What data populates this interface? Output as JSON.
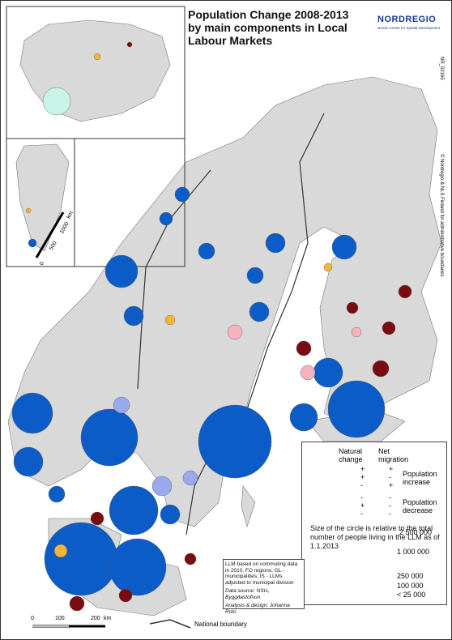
{
  "header": {
    "title": "Population Change 2008-2013 by main components in Local Labour Markets",
    "logo": "NORDREGIO",
    "logo_subtitle": "Nordic Centre for Spatial Development",
    "map_id": "NR_02165",
    "copyright": "© Nordregio & NLS Finland for administrative boundaries"
  },
  "legend": {
    "natural_change": "Natural change",
    "net_migration": "Net migration",
    "rows": [
      {
        "color": "#0b5cc7",
        "natural": "+",
        "migration": "+"
      },
      {
        "color": "#c8f3e6",
        "natural": "+",
        "migration": "-"
      },
      {
        "color": "#9aa8ee",
        "natural": "-",
        "migration": "+"
      },
      {
        "color": "#f4b3bd",
        "natural": "-",
        "migration": "-"
      },
      {
        "color": "#f5b33a",
        "natural": "+",
        "migration": "-"
      },
      {
        "color": "#7a0b10",
        "natural": "-",
        "migration": "-"
      }
    ],
    "increase": "Population increase",
    "decrease": "Population decrease",
    "size_note": "Size of the circle is relative to the total number of people living in the LLM as of 1.1.2013",
    "sizes": [
      "2 500 000",
      "1 000 000",
      "250 000",
      "100 000",
      "< 25 000"
    ]
  },
  "info": {
    "text": "LLM based on commuting data in 2010. FO regions; GL -municipalities; IS - LLMs adjusted to municipal division",
    "source": "Data source: NSIs, Byggðastofnun",
    "analysis": "Analysis & design: Johanna Roto"
  },
  "scale": {
    "labels": [
      "0",
      "100",
      "200",
      "km"
    ]
  },
  "inset_scale": {
    "labels": [
      "0",
      "500",
      "1000",
      "km"
    ]
  },
  "boundary": "National boundary"
}
